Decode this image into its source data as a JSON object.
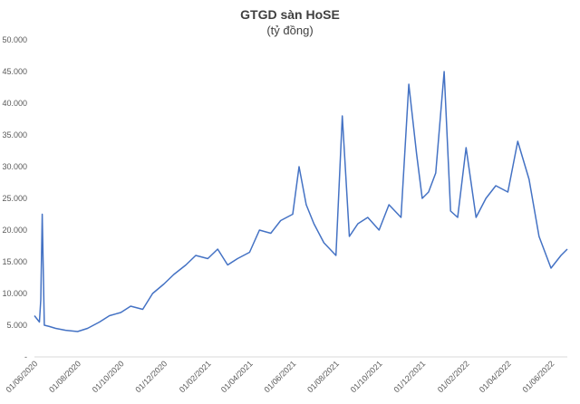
{
  "chart_data": {
    "type": "line",
    "title": "GTGD sàn HoSE",
    "subtitle": "(tỷ đồng)",
    "xlabel": "",
    "ylabel": "",
    "ylim": [
      0,
      50000
    ],
    "y_ticks": [
      "-",
      "5.000",
      "10.000",
      "15.000",
      "20.000",
      "25.000",
      "30.000",
      "35.000",
      "40.000",
      "45.000",
      "50.000"
    ],
    "x_ticks": [
      "01/06/2020",
      "01/08/2020",
      "01/10/2020",
      "01/12/2020",
      "01/02/2021",
      "01/04/2021",
      "01/06/2021",
      "01/08/2021",
      "01/10/2021",
      "01/12/2021",
      "01/02/2022",
      "01/04/2022",
      "01/06/2022"
    ],
    "grid": false,
    "legend": "none",
    "line_color": "#4472C4",
    "series": [
      {
        "x": [
          "01/06/2020",
          "08/06/2020",
          "10/06/2020",
          "12/06/2020",
          "15/06/2020",
          "22/06/2020",
          "01/07/2020",
          "15/07/2020",
          "01/08/2020",
          "15/08/2020",
          "01/09/2020",
          "15/09/2020",
          "01/10/2020",
          "15/10/2020",
          "01/11/2020",
          "15/11/2020",
          "01/12/2020",
          "15/12/2020",
          "01/01/2021",
          "15/01/2021",
          "01/02/2021",
          "15/02/2021",
          "01/03/2021",
          "15/03/2021",
          "01/04/2021",
          "15/04/2021",
          "01/05/2021",
          "15/05/2021",
          "01/06/2021",
          "10/06/2021",
          "20/06/2021",
          "01/07/2021",
          "15/07/2021",
          "01/08/2021",
          "10/08/2021",
          "20/08/2021",
          "01/09/2021",
          "15/09/2021",
          "01/10/2021",
          "15/10/2021",
          "01/11/2021",
          "12/11/2021",
          "23/11/2021",
          "01/12/2021",
          "10/12/2021",
          "20/12/2021",
          "01/01/2022",
          "10/01/2022",
          "20/01/2022",
          "01/02/2022",
          "15/02/2022",
          "01/03/2022",
          "15/03/2022",
          "01/04/2022",
          "15/04/2022",
          "01/05/2022",
          "15/05/2022",
          "01/06/2022",
          "15/06/2022",
          "24/06/2022"
        ],
        "values": [
          6500,
          5500,
          9000,
          22500,
          5000,
          4800,
          4500,
          4200,
          4000,
          4500,
          5500,
          6500,
          7000,
          8000,
          7500,
          10000,
          11500,
          13000,
          14500,
          16000,
          15500,
          17000,
          14500,
          15500,
          16500,
          20000,
          19500,
          21500,
          22500,
          30000,
          24000,
          21000,
          18000,
          16000,
          38000,
          19000,
          21000,
          22000,
          20000,
          24000,
          22000,
          43000,
          32000,
          25000,
          26000,
          29000,
          45000,
          23000,
          22000,
          33000,
          22000,
          25000,
          27000,
          26000,
          34000,
          28000,
          19000,
          14000,
          16000,
          17000
        ]
      }
    ]
  }
}
